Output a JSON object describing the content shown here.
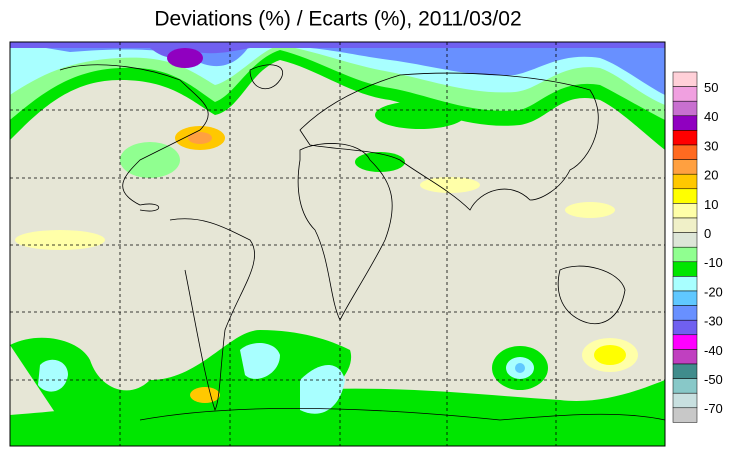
{
  "title": "Deviations (%) / Ecarts (%), 2011/03/02",
  "colorbar": {
    "labels": [
      50,
      40,
      30,
      20,
      10,
      0,
      -10,
      -20,
      -30,
      -40,
      -50,
      -70
    ],
    "colors": [
      "#ffd0d8",
      "#f0a0e0",
      "#c870d0",
      "#9000c0",
      "#ff0000",
      "#ff6a20",
      "#ffa040",
      "#ffc800",
      "#ffff00",
      "#ffffa8",
      "#f0f0c8",
      "#dde6d8",
      "#90ff90",
      "#00e600",
      "#a8ffff",
      "#60c8ff",
      "#6890ff",
      "#7060f0",
      "#ff00ff",
      "#c040c0",
      "#408c8c",
      "#88c8c8",
      "#c8e0e0",
      "#c8c8c8"
    ]
  }
}
